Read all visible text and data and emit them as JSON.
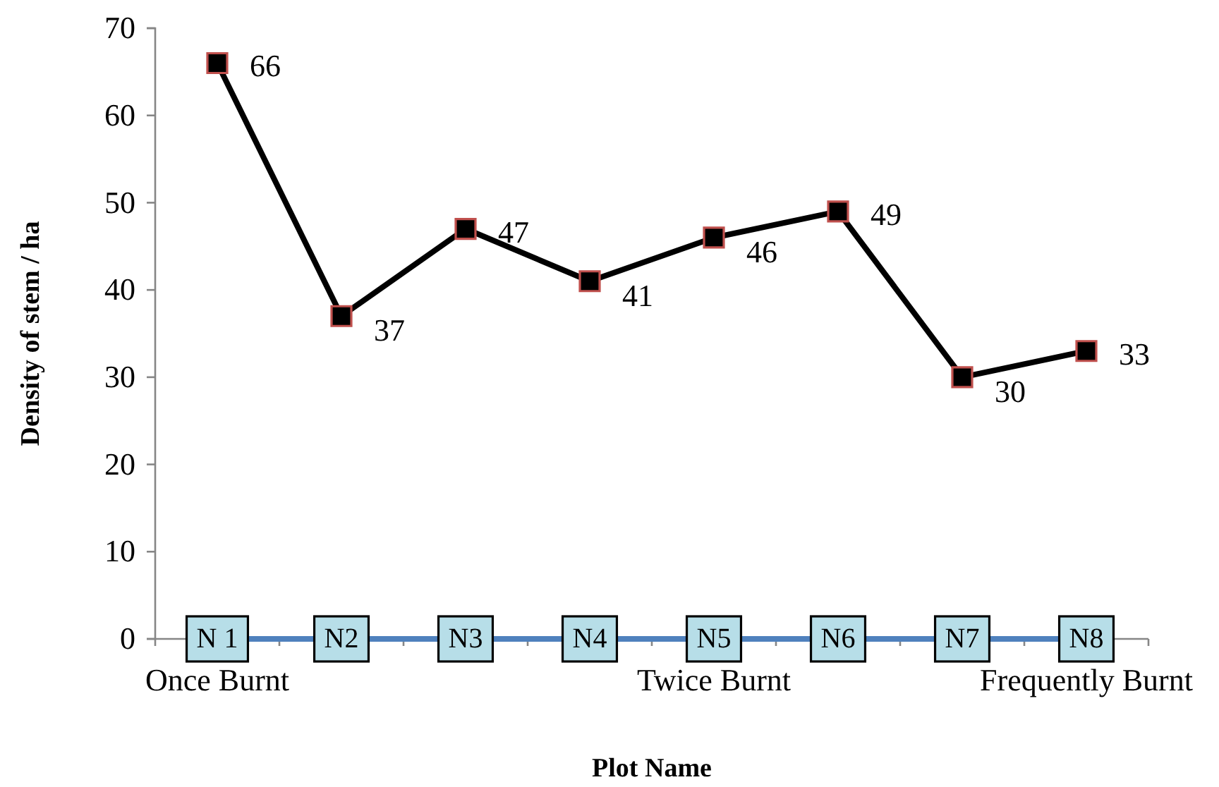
{
  "chart_data": {
    "type": "line",
    "xlabel": "Plot Name",
    "ylabel": "Density of stem / ha",
    "categories": [
      "Once Burnt",
      null,
      null,
      null,
      "Twice Burnt",
      null,
      null,
      "Frequently Burnt"
    ],
    "ylim": [
      0,
      70
    ],
    "yticks": [
      0,
      10,
      20,
      30,
      40,
      50,
      60,
      70
    ],
    "series": [
      {
        "color": "#000000",
        "marker": "square",
        "data_labels": true,
        "values": [
          66,
          37,
          47,
          41,
          46,
          49,
          30,
          33
        ]
      },
      {
        "color": "#4f81bd",
        "marker": "square",
        "values": [
          0,
          0,
          0,
          0,
          0,
          0,
          0,
          0
        ],
        "value_labels": [
          "N 1",
          "N2",
          "N3",
          "N4",
          "N5",
          "N6",
          "N7",
          "N8"
        ]
      }
    ]
  }
}
